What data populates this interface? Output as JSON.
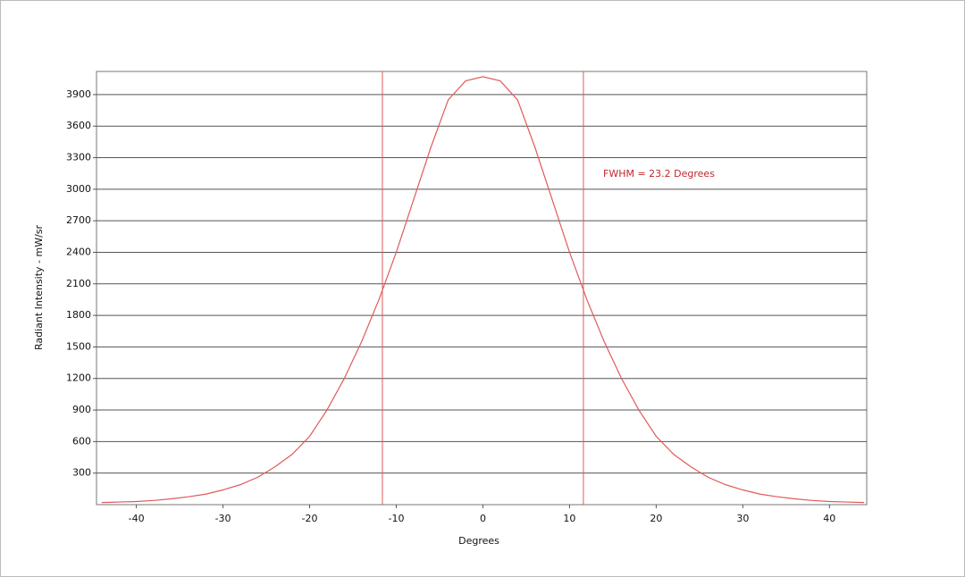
{
  "chart_data": {
    "type": "line",
    "x": [
      -44,
      -42,
      -40,
      -38,
      -36,
      -34,
      -32,
      -30,
      -28,
      -26,
      -24,
      -22,
      -20,
      -18,
      -16,
      -14,
      -12,
      -10,
      -8,
      -6,
      -4,
      -2,
      0,
      2,
      4,
      6,
      8,
      10,
      12,
      14,
      16,
      18,
      20,
      22,
      24,
      26,
      28,
      30,
      32,
      34,
      36,
      38,
      40,
      42,
      44
    ],
    "series": [
      {
        "color": "#e05a5a",
        "values": [
          20,
          25,
          30,
          40,
          55,
          75,
          100,
          140,
          190,
          260,
          360,
          480,
          650,
          900,
          1200,
          1550,
          1950,
          2400,
          2900,
          3400,
          3850,
          4030,
          4070,
          4030,
          3850,
          3400,
          2900,
          2400,
          1950,
          1550,
          1200,
          900,
          650,
          480,
          360,
          260,
          190,
          140,
          100,
          75,
          55,
          40,
          30,
          25,
          20
        ]
      }
    ],
    "markers": [
      -11.6,
      11.6
    ],
    "marker_color": "#e05a5a",
    "annotation": "FWHM = 23.2 Degrees",
    "annotation_color": "#c0282d",
    "xlabel": "Degrees",
    "ylabel": "Radiant Intensity - mW/sr",
    "xlim": [
      -44.6,
      44.3
    ],
    "xticks": [
      -40,
      -30,
      -20,
      -10,
      0,
      10,
      20,
      30,
      40
    ],
    "ylim": [
      0,
      4120
    ],
    "yticks": [
      300,
      600,
      900,
      1200,
      1500,
      1800,
      2100,
      2400,
      2700,
      3000,
      3300,
      3600,
      3900
    ],
    "grid": true
  }
}
